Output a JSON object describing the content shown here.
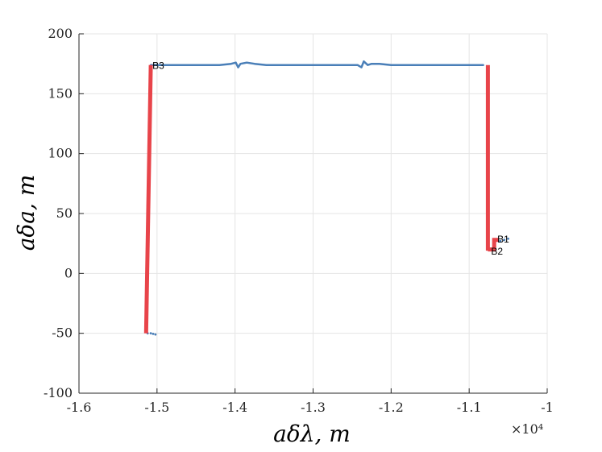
{
  "chart_data": {
    "type": "line",
    "xlabel": "aδλ, m",
    "ylabel": "aδa, m",
    "x_multiplier_label": "×10⁴",
    "xlim": [
      -1.6,
      -1.0
    ],
    "ylim": [
      -100,
      200
    ],
    "xticks": [
      "-1.6",
      "-1.5",
      "-1.4",
      "-1.3",
      "-1.2",
      "-1.1",
      "-1"
    ],
    "yticks": [
      "-100",
      "-50",
      "0",
      "50",
      "100",
      "150",
      "200"
    ],
    "xtick_values": [
      -1.6,
      -1.5,
      -1.4,
      -1.3,
      -1.2,
      -1.1,
      -1.0
    ],
    "ytick_values": [
      -100,
      -50,
      0,
      50,
      100,
      150,
      200
    ],
    "grid": true,
    "colors": {
      "trajectory": "#4a7fb8",
      "maneuver": "#e8444a",
      "grid": "#e5e5e5",
      "axis": "#262626"
    },
    "series": [
      {
        "kind": "trajectory-solid",
        "points": [
          [
            -1.508,
            174
          ],
          [
            -1.48,
            174
          ],
          [
            -1.45,
            174
          ],
          [
            -1.42,
            174
          ],
          [
            -1.405,
            175
          ],
          [
            -1.399,
            176
          ],
          [
            -1.396,
            172
          ],
          [
            -1.393,
            175
          ],
          [
            -1.385,
            176
          ],
          [
            -1.375,
            175
          ],
          [
            -1.36,
            174
          ],
          [
            -1.33,
            174
          ],
          [
            -1.3,
            174
          ],
          [
            -1.27,
            174
          ],
          [
            -1.25,
            174
          ],
          [
            -1.243,
            174
          ],
          [
            -1.238,
            172
          ],
          [
            -1.235,
            177
          ],
          [
            -1.23,
            174
          ],
          [
            -1.225,
            175
          ],
          [
            -1.215,
            175
          ],
          [
            -1.2,
            174
          ],
          [
            -1.17,
            174
          ],
          [
            -1.14,
            174
          ],
          [
            -1.11,
            174
          ],
          [
            -1.082,
            174
          ]
        ]
      },
      {
        "kind": "trajectory-dotted",
        "points": [
          [
            -1.512,
            -50
          ],
          [
            -1.508,
            -50
          ],
          [
            -1.505,
            -50.5
          ],
          [
            -1.502,
            -51
          ],
          [
            -1.05,
            29
          ],
          [
            -1.055,
            28
          ],
          [
            -1.06,
            27
          ]
        ]
      },
      {
        "kind": "maneuver",
        "points": [
          [
            -1.514,
            -50
          ],
          [
            -1.508,
            174
          ]
        ]
      },
      {
        "kind": "maneuver",
        "points": [
          [
            -1.076,
            174
          ],
          [
            -1.076,
            19
          ]
        ]
      },
      {
        "kind": "maneuver",
        "points": [
          [
            -1.076,
            20
          ],
          [
            -1.068,
            20
          ],
          [
            -1.068,
            28
          ],
          [
            -1.062,
            28
          ]
        ]
      }
    ],
    "annotations": [
      {
        "text": "B3",
        "x": -1.508,
        "y": 174
      },
      {
        "text": "B1",
        "x": -1.066,
        "y": 29
      },
      {
        "text": "B2",
        "x": -1.074,
        "y": 19
      }
    ]
  }
}
